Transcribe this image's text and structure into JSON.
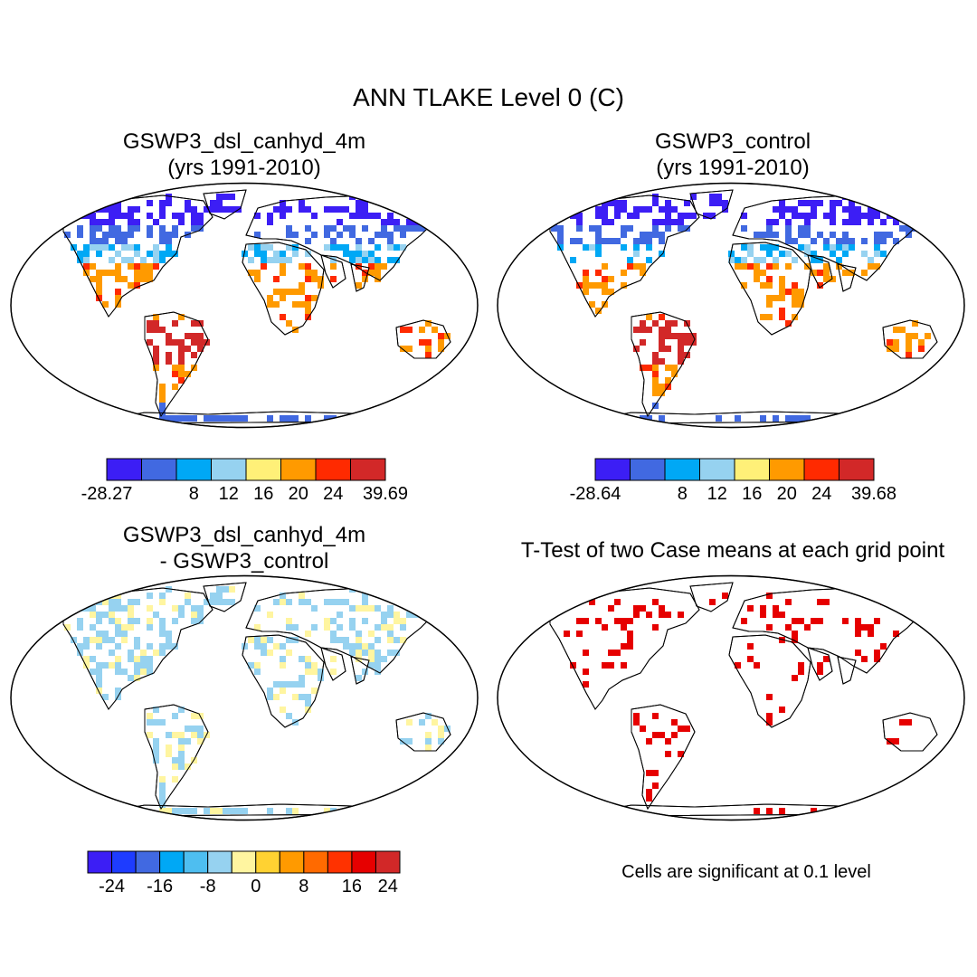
{
  "main_title": "ANN TLAKE Level 0 (C)",
  "colors": {
    "ocean": "#ffffff",
    "land_outline": "#000000",
    "case_palette": [
      "#3c1ef5",
      "#4169e1",
      "#00a8f5",
      "#96d2f0",
      "#fff078",
      "#ff9a00",
      "#ff2a00",
      "#d22828"
    ],
    "diff_palette": [
      "#3c1ef5",
      "#1e3cff",
      "#4169e1",
      "#00a8f5",
      "#4ebef0",
      "#96d2f0",
      "#fff5a0",
      "#ffd232",
      "#ff9a00",
      "#ff6a00",
      "#ff3200",
      "#e60000",
      "#d22828"
    ],
    "signif": "#e60000"
  },
  "panels": [
    {
      "id": "case",
      "title_line1": "GSWP3_dsl_canhyd_4m",
      "title_line2": "(yrs 1991-2010)"
    },
    {
      "id": "control",
      "title_line1": "GSWP3_control",
      "title_line2": "(yrs 1991-2010)"
    },
    {
      "id": "diff",
      "title_line1": "GSWP3_dsl_canhyd_4m",
      "title_line2": "- GSWP3_control"
    },
    {
      "id": "ttest",
      "title_line1": "T-Test of two Case means at each grid point",
      "title_line2": ""
    }
  ],
  "colorbars": {
    "case": {
      "labels": [
        "-28.27",
        "8",
        "12",
        "16",
        "20",
        "24",
        "39.69"
      ]
    },
    "control": {
      "labels": [
        "-28.64",
        "8",
        "12",
        "16",
        "20",
        "24",
        "39.68"
      ]
    },
    "diff": {
      "labels": [
        "-24",
        "-16",
        "-8",
        "0",
        "8",
        "16",
        "24"
      ]
    }
  },
  "ttest_note": "Cells are significant at 0.1 level"
}
